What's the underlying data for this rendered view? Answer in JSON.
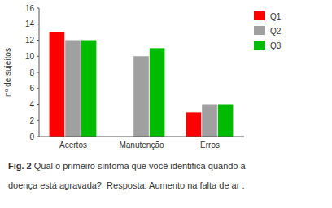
{
  "chart_data": {
    "type": "bar",
    "categories": [
      "Acertos",
      "Manutenção",
      "Erros"
    ],
    "series": [
      {
        "name": "Q1",
        "color": "#FF0000",
        "values": [
          13,
          0,
          3
        ]
      },
      {
        "name": "Q2",
        "color": "#A0A0A0",
        "values": [
          12,
          10,
          4
        ]
      },
      {
        "name": "Q3",
        "color": "#00BB00",
        "values": [
          12,
          11,
          4
        ]
      }
    ],
    "ylabel": "nº de sujeitos",
    "ylim": [
      0,
      16
    ],
    "yticks": [
      0,
      2,
      4,
      6,
      8,
      10,
      12,
      14,
      16
    ],
    "grid": false,
    "legend": "right",
    "annotations": [
      "Fig. 2",
      " Qual o primeiro sintoma que você identifica quando a",
      "doença está agravada?  Resposta: Aumento na falta de ar ."
    ]
  }
}
